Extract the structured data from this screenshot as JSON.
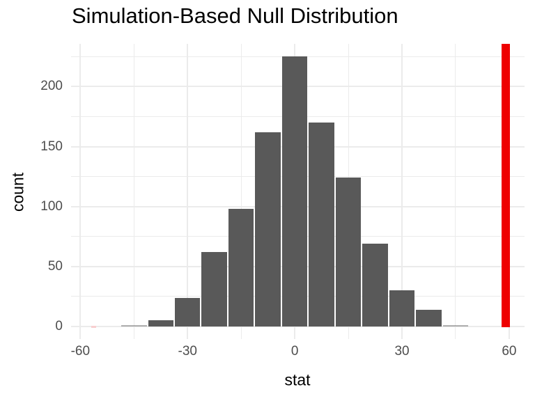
{
  "title": "Simulation-Based Null Distribution",
  "axes": {
    "x_label": "stat",
    "y_label": "count"
  },
  "colors": {
    "background": "#FFFFFF",
    "bar_fill": "#595959",
    "gridline": "#EBEBEB",
    "tick_label": "#4D4D4D",
    "axis_title": "#000000",
    "observed_line": "#EE0000",
    "tail_marker": "#F8CFD0"
  },
  "chart_data": {
    "type": "bar",
    "subtype": "histogram",
    "title": "Simulation-Based Null Distribution",
    "xlabel": "stat",
    "ylabel": "count",
    "grid": "on",
    "legend": "none",
    "binwidth": 7.5,
    "bin_centers": [
      -45,
      -37.5,
      -30,
      -22.5,
      -15,
      -7.5,
      0,
      7.5,
      15,
      22.5,
      30,
      37.5,
      45
    ],
    "counts": [
      1,
      5,
      24,
      62,
      98,
      162,
      225,
      170,
      124,
      69,
      30,
      14,
      1
    ],
    "x_major_ticks": [
      -60,
      -30,
      0,
      30,
      60
    ],
    "x_tick_labels": [
      "-60",
      "-30",
      "0",
      "30",
      "60"
    ],
    "x_minor_gridlines": [
      -45,
      -15,
      15,
      45
    ],
    "y_major_ticks": [
      0,
      50,
      100,
      150,
      200
    ],
    "y_tick_labels": [
      "0",
      "50",
      "100",
      "150",
      "200"
    ],
    "y_minor_gridlines": [
      25,
      75,
      125,
      175,
      225
    ],
    "xlim": [
      -62.6,
      64.3
    ],
    "ylim": [
      -10.5,
      236
    ],
    "observed_stat": 59,
    "observed_stat_color": "#EE0000",
    "left_tail_marker": {
      "x": -56.25,
      "count": 1
    }
  }
}
